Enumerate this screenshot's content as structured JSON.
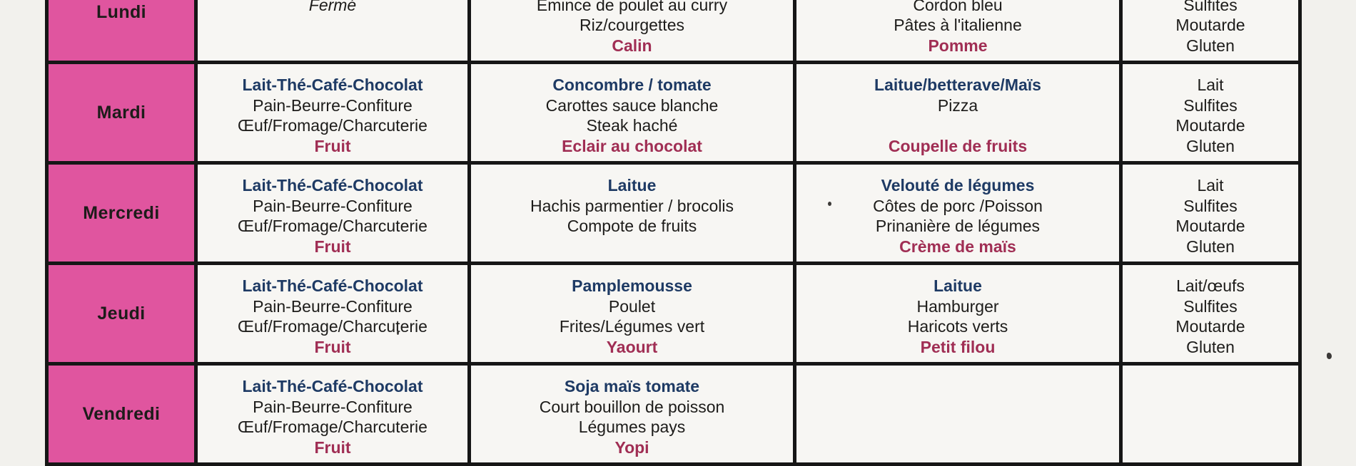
{
  "colors": {
    "day_cell_pink": "#e0559f",
    "starter_navy": "#1e3a64",
    "dessert_red": "#a02e54",
    "text_ink": "#1d1c1a",
    "grid_line": "#161616",
    "paper": "#f7f6f3"
  },
  "table": {
    "columns": [
      "day",
      "breakfast",
      "lunch",
      "dinner",
      "allergens"
    ],
    "days": [
      {
        "day": "Lundi",
        "breakfast": [
          {
            "text": "",
            "style": "blank"
          },
          {
            "text": "Fermé",
            "style": "closed"
          },
          {
            "text": "",
            "style": "blank"
          },
          {
            "text": "",
            "style": "blank"
          }
        ],
        "lunch": [
          {
            "text": "",
            "style": "blank"
          },
          {
            "text": "Émince de poulet au curry",
            "style": "main"
          },
          {
            "text": "Riz/courgettes",
            "style": "main"
          },
          {
            "text": "Calin",
            "style": "dessert"
          }
        ],
        "dinner": [
          {
            "text": "",
            "style": "blank"
          },
          {
            "text": "Cordon bleu",
            "style": "main"
          },
          {
            "text": "Pâtes à l'italienne",
            "style": "main"
          },
          {
            "text": "Pomme",
            "style": "dessert"
          }
        ],
        "allergens": [
          {
            "text": "",
            "style": "blank"
          },
          {
            "text": "Sulfites",
            "style": "allergen"
          },
          {
            "text": "Moutarde",
            "style": "allergen"
          },
          {
            "text": "Gluten",
            "style": "allergen"
          }
        ]
      },
      {
        "day": "Mardi",
        "breakfast": [
          {
            "text": "Lait-Thé-Café-Chocolat",
            "style": "starter"
          },
          {
            "text": "Pain-Beurre-Confiture",
            "style": "main"
          },
          {
            "text": "Œuf/Fromage/Charcuterie",
            "style": "main"
          },
          {
            "text": "Fruit",
            "style": "dessert"
          }
        ],
        "lunch": [
          {
            "text": "Concombre / tomate",
            "style": "starter"
          },
          {
            "text": "Carottes sauce blanche",
            "style": "main"
          },
          {
            "text": "Steak haché",
            "style": "main"
          },
          {
            "text": "Eclair au chocolat",
            "style": "dessert"
          }
        ],
        "dinner": [
          {
            "text": "Laitue/betterave/Maïs",
            "style": "starter"
          },
          {
            "text": "Pizza",
            "style": "main"
          },
          {
            "text": "",
            "style": "blank"
          },
          {
            "text": "Coupelle de fruits",
            "style": "dessert"
          }
        ],
        "allergens": [
          {
            "text": "Lait",
            "style": "allergen"
          },
          {
            "text": "Sulfites",
            "style": "allergen"
          },
          {
            "text": "Moutarde",
            "style": "allergen"
          },
          {
            "text": "Gluten",
            "style": "allergen"
          }
        ]
      },
      {
        "day": "Mercredi",
        "breakfast": [
          {
            "text": "Lait-Thé-Café-Chocolat",
            "style": "starter"
          },
          {
            "text": "Pain-Beurre-Confiture",
            "style": "main"
          },
          {
            "text": "Œuf/Fromage/Charcuterie",
            "style": "main"
          },
          {
            "text": "Fruit",
            "style": "dessert"
          }
        ],
        "lunch": [
          {
            "text": "Laitue",
            "style": "starter"
          },
          {
            "text": "Hachis parmentier / brocolis",
            "style": "main"
          },
          {
            "text": "Compote de fruits",
            "style": "main"
          },
          {
            "text": "",
            "style": "blank"
          }
        ],
        "dinner": [
          {
            "text": "Velouté de légumes",
            "style": "starter"
          },
          {
            "text": "Côtes de porc /Poisson",
            "style": "main"
          },
          {
            "text": "Prinanière de légumes",
            "style": "main"
          },
          {
            "text": "Crème de maïs",
            "style": "dessert"
          }
        ],
        "allergens": [
          {
            "text": "Lait",
            "style": "allergen"
          },
          {
            "text": "Sulfites",
            "style": "allergen"
          },
          {
            "text": "Moutarde",
            "style": "allergen"
          },
          {
            "text": "Gluten",
            "style": "allergen"
          }
        ]
      },
      {
        "day": "Jeudi",
        "breakfast": [
          {
            "text": "Lait-Thé-Café-Chocolat",
            "style": "starter"
          },
          {
            "text": "Pain-Beurre-Confiture",
            "style": "main"
          },
          {
            "text": "Œuf/Fromage/Charcuterie",
            "style": "main"
          },
          {
            "text": "Fruit",
            "style": "dessert"
          }
        ],
        "lunch": [
          {
            "text": "Pamplemousse",
            "style": "starter"
          },
          {
            "text": "Poulet",
            "style": "main"
          },
          {
            "text": "Frites/Légumes vert",
            "style": "main"
          },
          {
            "text": "Yaourt",
            "style": "dessert"
          }
        ],
        "dinner": [
          {
            "text": "Laitue",
            "style": "starter"
          },
          {
            "text": "Hamburger",
            "style": "main"
          },
          {
            "text": "Haricots verts",
            "style": "main"
          },
          {
            "text": "Petit filou",
            "style": "dessert"
          }
        ],
        "allergens": [
          {
            "text": "Lait/œufs",
            "style": "allergen"
          },
          {
            "text": "Sulfites",
            "style": "allergen"
          },
          {
            "text": "Moutarde",
            "style": "allergen"
          },
          {
            "text": "Gluten",
            "style": "allergen"
          }
        ]
      },
      {
        "day": "Vendredi",
        "breakfast": [
          {
            "text": "Lait-Thé-Café-Chocolat",
            "style": "starter"
          },
          {
            "text": "Pain-Beurre-Confiture",
            "style": "main"
          },
          {
            "text": "Œuf/Fromage/Charcuterie",
            "style": "main"
          },
          {
            "text": "Fruit",
            "style": "dessert"
          }
        ],
        "lunch": [
          {
            "text": "Soja maïs tomate",
            "style": "starter"
          },
          {
            "text": "Court bouillon de poisson",
            "style": "main"
          },
          {
            "text": "Légumes pays",
            "style": "main"
          },
          {
            "text": "Yopi",
            "style": "dessert"
          }
        ],
        "dinner": [
          {
            "text": "",
            "style": "blank"
          },
          {
            "text": "",
            "style": "blank"
          },
          {
            "text": "",
            "style": "blank"
          },
          {
            "text": "",
            "style": "blank"
          }
        ],
        "allergens": [
          {
            "text": "",
            "style": "blank"
          },
          {
            "text": "",
            "style": "blank"
          },
          {
            "text": "",
            "style": "blank"
          },
          {
            "text": "",
            "style": "blank"
          }
        ]
      }
    ]
  }
}
